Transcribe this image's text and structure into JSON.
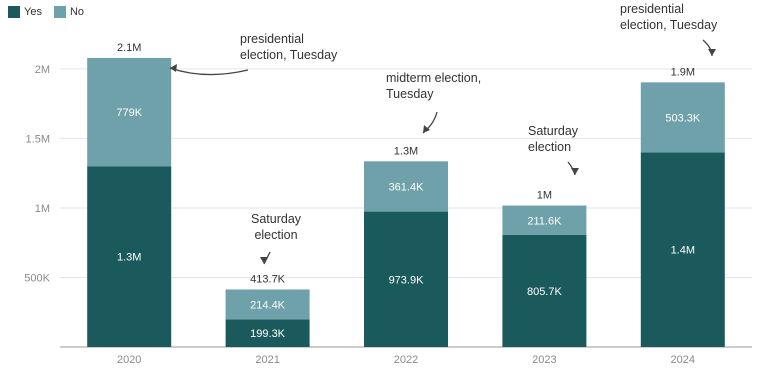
{
  "chart_data": {
    "type": "bar",
    "stacked": true,
    "categories": [
      "2020",
      "2021",
      "2022",
      "2023",
      "2024"
    ],
    "series": [
      {
        "name": "Yes",
        "color": "#1b5a5c",
        "values": [
          1300000,
          199300,
          973900,
          805700,
          1400000
        ],
        "labels": [
          "1.3M",
          "199.3K",
          "973.9K",
          "805.7K",
          "1.4M"
        ]
      },
      {
        "name": "No",
        "color": "#6ea1a9",
        "values": [
          779000,
          214400,
          361400,
          211600,
          503300
        ],
        "labels": [
          "779K",
          "214.4K",
          "361.4K",
          "211.6K",
          "503.3K"
        ]
      }
    ],
    "totals": [
      "2.1M",
      "413.7K",
      "1.3M",
      "1M",
      "1.9M"
    ],
    "ylim": [
      0,
      2100000
    ],
    "yticks": [
      {
        "value": 500000,
        "label": "500K"
      },
      {
        "value": 1000000,
        "label": "1M"
      },
      {
        "value": 1500000,
        "label": "1.5M"
      },
      {
        "value": 2000000,
        "label": "2M"
      }
    ],
    "grid": true,
    "legend_position": "top-left",
    "annotations": [
      {
        "category": "2020",
        "lines": [
          "presidential",
          "election, Tuesday"
        ]
      },
      {
        "category": "2021",
        "lines": [
          "Saturday",
          "election"
        ]
      },
      {
        "category": "2022",
        "lines": [
          "midterm election,",
          "Tuesday"
        ]
      },
      {
        "category": "2023",
        "lines": [
          "Saturday",
          "election"
        ]
      },
      {
        "category": "2024",
        "lines": [
          "presidential",
          "election, Tuesday"
        ]
      }
    ],
    "axis_color": "#999999",
    "grid_color": "#e6e6e6",
    "text_color": "#333333",
    "tick_color": "#8a8a8a"
  }
}
